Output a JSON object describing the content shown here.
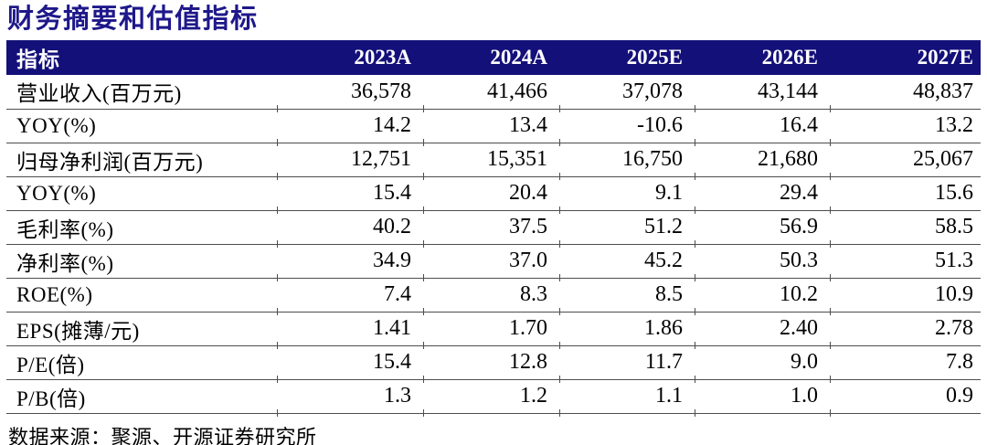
{
  "page": {
    "title": "财务摘要和估值指标",
    "source_note": "数据来源：聚源、开源证券研究所"
  },
  "colors": {
    "header_bg": "#14107a",
    "header_text": "#ffffff",
    "title_text": "#1e188a",
    "row_border": "#4d4d4d",
    "body_text": "#000000"
  },
  "chart_data": {
    "type": "table",
    "title": "财务摘要和估值指标",
    "columns": [
      "指标",
      "2023A",
      "2024A",
      "2025E",
      "2026E",
      "2027E"
    ],
    "rows": [
      {
        "label": "营业收入(百万元)",
        "values": [
          "36,578",
          "41,466",
          "37,078",
          "43,144",
          "48,837"
        ]
      },
      {
        "label": "YOY(%)",
        "values": [
          "14.2",
          "13.4",
          "-10.6",
          "16.4",
          "13.2"
        ]
      },
      {
        "label": "归母净利润(百万元)",
        "values": [
          "12,751",
          "15,351",
          "16,750",
          "21,680",
          "25,067"
        ]
      },
      {
        "label": "YOY(%)",
        "values": [
          "15.4",
          "20.4",
          "9.1",
          "29.4",
          "15.6"
        ]
      },
      {
        "label": "毛利率(%)",
        "values": [
          "40.2",
          "37.5",
          "51.2",
          "56.9",
          "58.5"
        ]
      },
      {
        "label": "净利率(%)",
        "values": [
          "34.9",
          "37.0",
          "45.2",
          "50.3",
          "51.3"
        ]
      },
      {
        "label": "ROE(%)",
        "values": [
          "7.4",
          "8.3",
          "8.5",
          "10.2",
          "10.9"
        ]
      },
      {
        "label": "EPS(摊薄/元)",
        "values": [
          "1.41",
          "1.70",
          "1.86",
          "2.40",
          "2.78"
        ]
      },
      {
        "label": "P/E(倍)",
        "values": [
          "15.4",
          "12.8",
          "11.7",
          "9.0",
          "7.8"
        ]
      },
      {
        "label": "P/B(倍)",
        "values": [
          "1.3",
          "1.2",
          "1.1",
          "1.0",
          "0.9"
        ]
      }
    ],
    "source": "数据来源：聚源、开源证券研究所",
    "layout": {
      "grid": "horizontal-rules-only",
      "header_style": "navy-filled",
      "value_alignment": "right"
    }
  }
}
